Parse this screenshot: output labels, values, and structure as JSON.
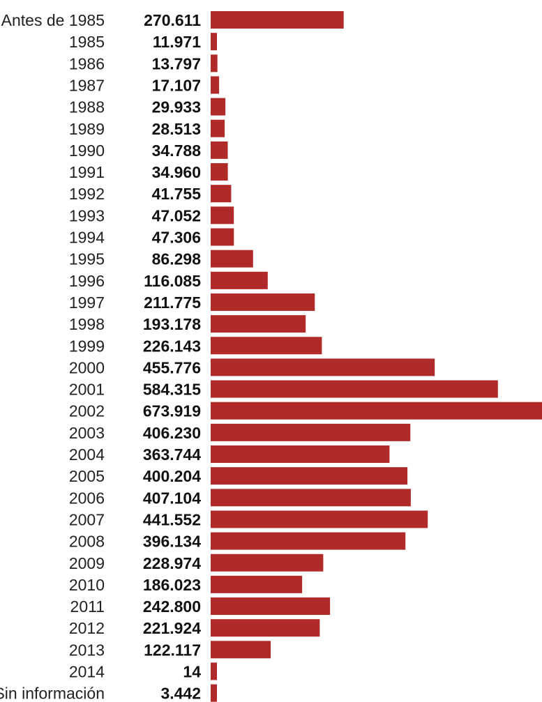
{
  "chart_data": {
    "type": "bar",
    "orientation": "horizontal",
    "categories": [
      "Antes de 1985",
      "1985",
      "1986",
      "1987",
      "1988",
      "1989",
      "1990",
      "1991",
      "1992",
      "1993",
      "1994",
      "1995",
      "1996",
      "1997",
      "1998",
      "1999",
      "2000",
      "2001",
      "2002",
      "2003",
      "2004",
      "2005",
      "2006",
      "2007",
      "2008",
      "2009",
      "2010",
      "2011",
      "2012",
      "2013",
      "2014",
      "Sin información"
    ],
    "values": [
      270611,
      11971,
      13797,
      17107,
      29933,
      28513,
      34788,
      34960,
      41755,
      47052,
      47306,
      86298,
      116085,
      211775,
      193178,
      226143,
      455776,
      584315,
      673919,
      406230,
      363744,
      400204,
      407104,
      441552,
      396134,
      228974,
      186023,
      242800,
      221924,
      122117,
      14,
      3442
    ],
    "value_labels": [
      "270.611",
      "11.971",
      "13.797",
      "17.107",
      "29.933",
      "28.513",
      "34.788",
      "34.960",
      "41.755",
      "47.052",
      "47.306",
      "86.298",
      "116.085",
      "211.775",
      "193.178",
      "226.143",
      "455.776",
      "584.315",
      "673.919",
      "406.230",
      "363.744",
      "400.204",
      "407.104",
      "441.552",
      "396.134",
      "228.974",
      "186.023",
      "242.800",
      "221.924",
      "122.117",
      "14",
      "3.442"
    ],
    "title": "",
    "xlabel": "",
    "ylabel": "",
    "xlim": [
      0,
      673919
    ],
    "grid": false,
    "bar_color": "#b02a2a"
  }
}
